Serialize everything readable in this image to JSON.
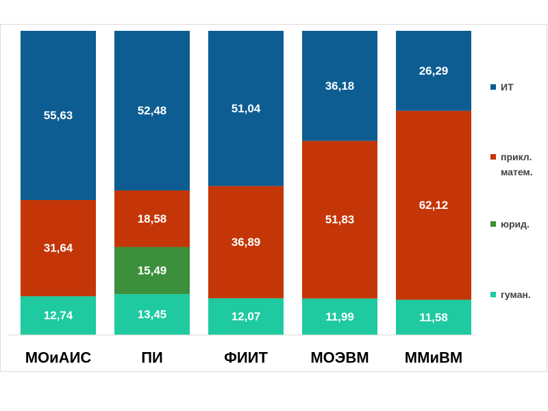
{
  "chart_data": {
    "type": "bar",
    "stacked": true,
    "normalized_to_percent": true,
    "categories": [
      "МОиАИС",
      "ПИ",
      "ФИИТ",
      "МОЭВМ",
      "ММиВМ"
    ],
    "series": [
      {
        "name": "гуман.",
        "color": "#1fcaa0",
        "values": [
          12.74,
          13.45,
          12.07,
          11.99,
          11.58
        ],
        "labels": [
          "12,74",
          "13,45",
          "12,07",
          "11,99",
          "11,58"
        ]
      },
      {
        "name": "юрид.",
        "color": "#3c8f3b",
        "values": [
          0,
          15.49,
          0,
          0,
          0
        ],
        "labels": [
          "",
          "15,49",
          "",
          "",
          ""
        ]
      },
      {
        "name": "прикл. матем.",
        "color": "#c43608",
        "values": [
          31.64,
          18.58,
          36.89,
          51.83,
          62.12
        ],
        "labels": [
          "31,64",
          "18,58",
          "36,89",
          "51,83",
          "62,12"
        ]
      },
      {
        "name": "ИТ",
        "color": "#0d5d92",
        "values": [
          55.63,
          52.48,
          51.04,
          36.18,
          26.29
        ],
        "labels": [
          "55,63",
          "52,48",
          "51,04",
          "36,18",
          "26,29"
        ]
      }
    ],
    "legend": {
      "position": "right",
      "entries": [
        {
          "lines": [
            "ИТ"
          ],
          "color": "#0d5d92"
        },
        {
          "lines": [
            "прикл.",
            "матем."
          ],
          "color": "#c43608"
        },
        {
          "lines": [
            "юрид."
          ],
          "color": "#3c8f3b"
        },
        {
          "lines": [
            "гуман."
          ],
          "color": "#1fcaa0"
        }
      ]
    },
    "title": "",
    "xlabel": "",
    "ylabel": ""
  }
}
